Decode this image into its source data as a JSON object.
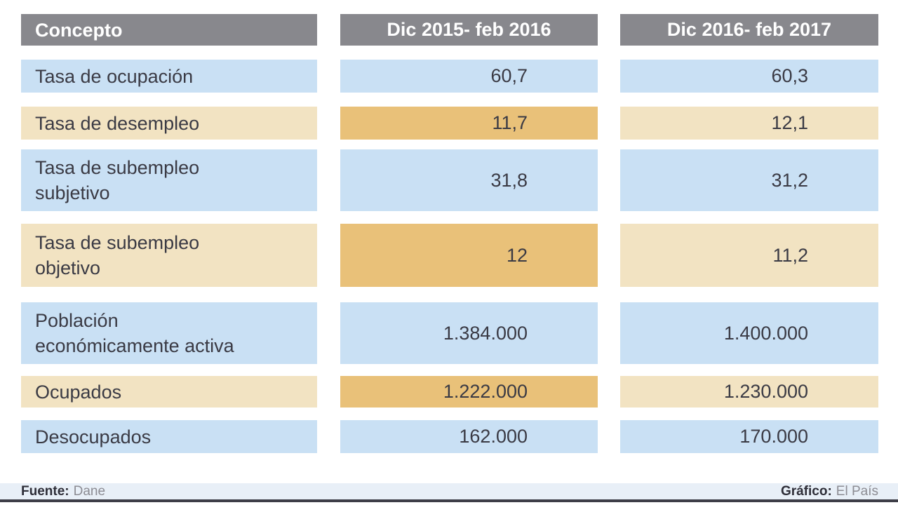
{
  "chart_data": {
    "type": "table",
    "columns": [
      "Concepto",
      "Dic 2015- feb 2016",
      "Dic 2016- feb 2017"
    ],
    "rows": [
      {
        "concept": "Tasa de ocupación",
        "period1": "60,7",
        "period2": "60,3"
      },
      {
        "concept": "Tasa de desempleo",
        "period1": "11,7",
        "period2": "12,1"
      },
      {
        "concept": "Tasa de subempleo\nsubjetivo",
        "period1": "31,8",
        "period2": "31,2"
      },
      {
        "concept": "Tasa de subempleo\nobjetivo",
        "period1": "12",
        "period2": "11,2"
      },
      {
        "concept": "Población\neconómicamente activa",
        "period1": "1.384.000",
        "period2": "1.400.000"
      },
      {
        "concept": "Ocupados",
        "period1": "1.222.000",
        "period2": "1.230.000"
      },
      {
        "concept": "Desocupados",
        "period1": "162.000",
        "period2": "170.000"
      }
    ],
    "layout_hints": {
      "highlighted_rows": [
        1,
        3,
        5
      ],
      "highlight_note": "alternating tan rows; period1 cell in darker orange"
    }
  },
  "colors": {
    "header_bg": "#88888d",
    "header_text": "#ffffff",
    "row_blue": "#c9e0f4",
    "row_tan": "#f2e3c2",
    "row_tan_highlight": "#e9c179",
    "text": "#3a3a44",
    "footer_bg": "#e8eff7",
    "footer_border": "#3d3d47"
  },
  "footer": {
    "source_label": "Fuente:",
    "source_value": "Dane",
    "credit_label": "Gráfico:",
    "credit_value": "El País"
  }
}
